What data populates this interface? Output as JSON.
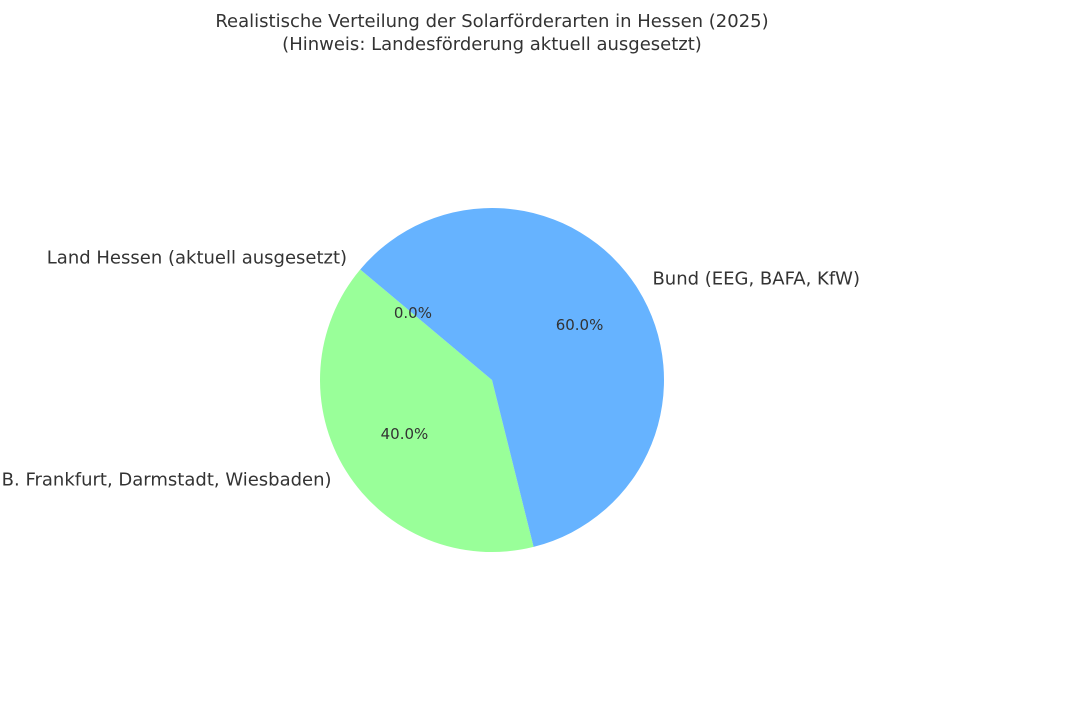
{
  "chart_data": {
    "type": "pie",
    "title": "Realistische Verteilung der Solarförderarten in Hessen (2025)",
    "subtitle": "(Hinweis: Landesförderung aktuell ausgesetzt)",
    "slices": [
      {
        "label": "Land Hessen (aktuell ausgesetzt)",
        "value": 0.0,
        "pct_label": "0.0%",
        "color": "#99ff99"
      },
      {
        "label": "Kommunen (z.B. Frankfurt, Darmstadt, Wiesbaden)",
        "value": 40.0,
        "pct_label": "40.0%",
        "color": "#99ff99"
      },
      {
        "label": "Bund (EEG, BAFA, KfW)",
        "value": 60.0,
        "pct_label": "60.0%",
        "color": "#66b3ff"
      }
    ],
    "start_angle_deg": 140
  }
}
